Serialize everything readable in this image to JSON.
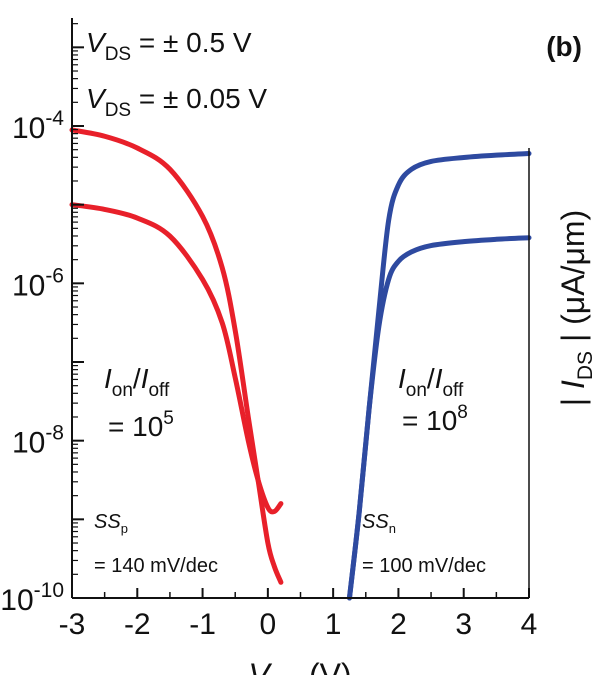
{
  "chart_data": {
    "type": "line",
    "panel_label": "(b)",
    "xlabel": "V_GS (V)",
    "ylabel": "|I_DS| (μA/μm)",
    "xlim": [
      -3,
      4
    ],
    "ylim_log10": [
      -10,
      -2.8
    ],
    "y_log_scale": true,
    "x_tick_labels": [
      "-3",
      "-2",
      "-1",
      "0",
      "1",
      "2",
      "3",
      "4"
    ],
    "y_tick_labels": [
      {
        "base": "10",
        "exp": "-4"
      },
      {
        "base": "10",
        "exp": "-6"
      },
      {
        "base": "10",
        "exp": "-8"
      },
      {
        "base": "10",
        "exp": "-10"
      }
    ],
    "legend_lines": [
      {
        "prefix": "V",
        "sub": "DS",
        "rest": " = ± 0.5 V"
      },
      {
        "prefix": "V",
        "sub": "DS",
        "rest": " = ± 0.05 V"
      }
    ],
    "annotations": {
      "left_ratio": {
        "line1": "I_on/I_off",
        "line2_prefix": "= 10",
        "line2_exp": "5"
      },
      "right_ratio": {
        "line1": "I_on/I_off",
        "line2_prefix": "= 10",
        "line2_exp": "8"
      },
      "ss_p": {
        "label": "SS",
        "sub": "p",
        "value": "= 140 mV/dec"
      },
      "ss_n": {
        "label": "SS",
        "sub": "n",
        "value": "= 100 mV/dec"
      }
    },
    "series": [
      {
        "color": "#e8202a",
        "x": [
          -3.0,
          -2.5,
          -2.0,
          -1.5,
          -1.0,
          -0.7,
          -0.5,
          -0.3,
          -0.15,
          0.0,
          0.1,
          0.2
        ],
        "log10_y": [
          -4.05,
          -4.13,
          -4.28,
          -4.55,
          -5.15,
          -5.8,
          -6.6,
          -7.7,
          -8.5,
          -9.3,
          -9.6,
          -9.8
        ]
      },
      {
        "color": "#e8202a",
        "x": [
          -3.0,
          -2.5,
          -2.0,
          -1.5,
          -1.0,
          -0.7,
          -0.5,
          -0.3,
          -0.15,
          0.0,
          0.1,
          0.2
        ],
        "log10_y": [
          -5.0,
          -5.06,
          -5.17,
          -5.4,
          -5.95,
          -6.5,
          -7.2,
          -8.0,
          -8.5,
          -8.85,
          -8.9,
          -8.8
        ]
      },
      {
        "color": "#2e4aa0",
        "x": [
          1.25,
          1.4,
          1.55,
          1.7,
          1.85,
          2.0,
          2.2,
          2.5,
          3.0,
          3.5,
          4.0
        ],
        "log10_y": [
          -10.0,
          -8.9,
          -7.6,
          -6.35,
          -5.2,
          -4.75,
          -4.55,
          -4.45,
          -4.4,
          -4.37,
          -4.35
        ]
      },
      {
        "color": "#2e4aa0",
        "x": [
          1.25,
          1.4,
          1.55,
          1.7,
          1.85,
          2.0,
          2.2,
          2.5,
          3.0,
          3.5,
          4.0
        ],
        "log10_y": [
          -10.0,
          -8.9,
          -7.6,
          -6.55,
          -5.95,
          -5.72,
          -5.6,
          -5.52,
          -5.47,
          -5.44,
          -5.42
        ]
      }
    ]
  }
}
